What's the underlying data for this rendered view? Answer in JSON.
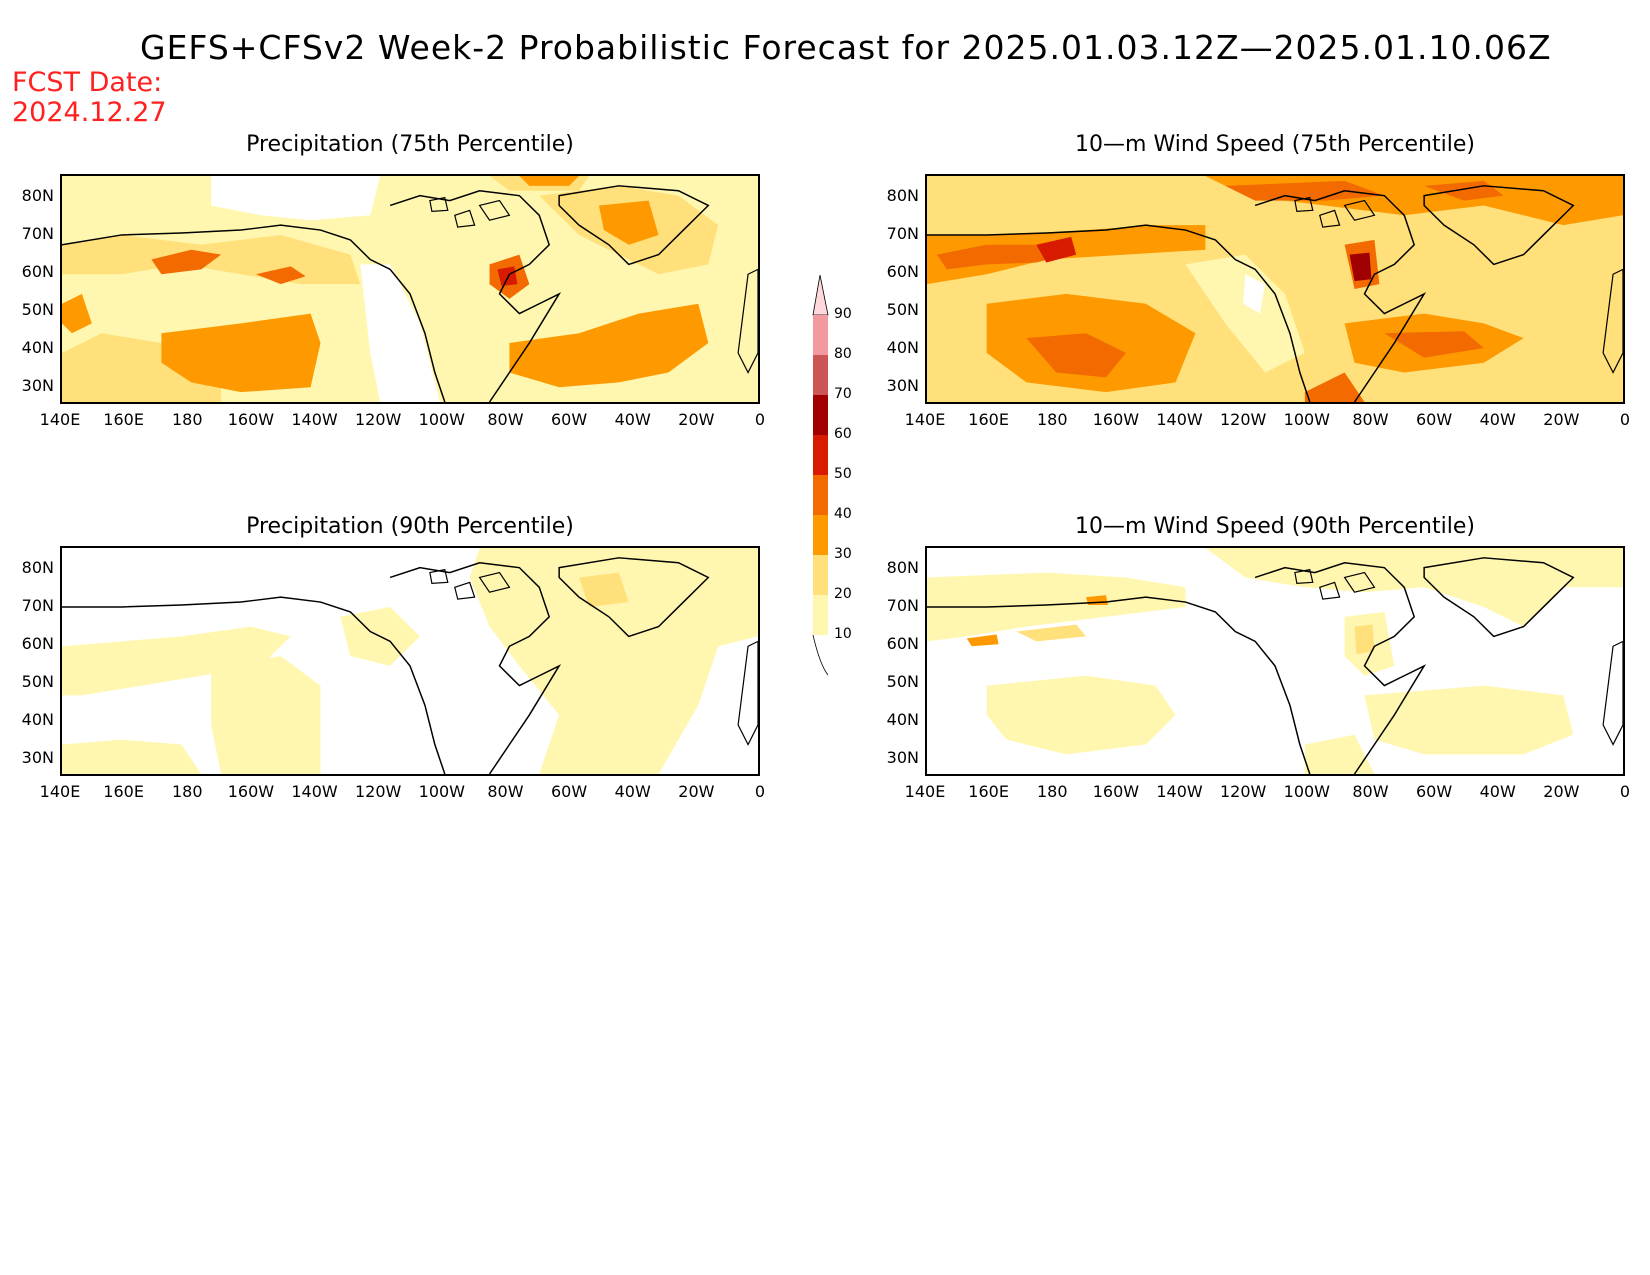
{
  "title": "GEFS+CFSv2 Week-2 Probabilistic Forecast for 2025.01.03.12Z—2025.01.10.06Z",
  "fcst_date_label": "FCST Date:",
  "fcst_date_value": "2024.12.27",
  "panels": [
    {
      "title": "Precipitation (75th Percentile)"
    },
    {
      "title": "10—m Wind Speed (75th Percentile)"
    },
    {
      "title": "Precipitation (90th Percentile)"
    },
    {
      "title": "10—m Wind Speed (90th Percentile)"
    }
  ],
  "lat_labels": [
    "80N",
    "70N",
    "60N",
    "50N",
    "40N",
    "30N"
  ],
  "lon_labels": [
    "140E",
    "160E",
    "180",
    "160W",
    "140W",
    "120W",
    "100W",
    "80W",
    "60W",
    "40W",
    "20W",
    "0"
  ],
  "colorbar": {
    "levels": [
      "10",
      "20",
      "30",
      "40",
      "50",
      "60",
      "70",
      "80",
      "90"
    ],
    "colors": [
      "#fff7b0",
      "#ffe07a",
      "#ff9900",
      "#f26a00",
      "#d81a00",
      "#a00000",
      "#cc5555",
      "#f29aa0",
      "#ffd8dc"
    ]
  }
}
